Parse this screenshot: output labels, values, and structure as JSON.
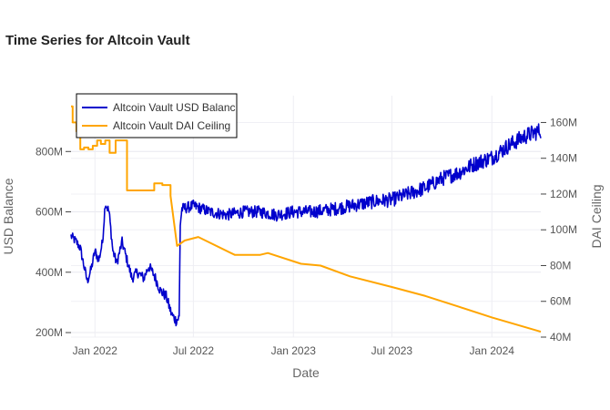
{
  "chart_data": {
    "type": "line",
    "title": "Time Series for Altcoin Vault",
    "xlabel": "Date",
    "ylabel_left": "USD Balance",
    "ylabel_right": "DAI Ceiling",
    "x_range": [
      "2021-11-18",
      "2024-03-31"
    ],
    "x_ticks": [
      {
        "date": "2022-01-01",
        "label": "Jan 2022"
      },
      {
        "date": "2022-07-01",
        "label": "Jul 2022"
      },
      {
        "date": "2023-01-01",
        "label": "Jan 2023"
      },
      {
        "date": "2023-07-01",
        "label": "Jul 2023"
      },
      {
        "date": "2024-01-01",
        "label": "Jan 2024"
      }
    ],
    "y_left": {
      "range": [
        185,
        985
      ],
      "ticks": [
        200,
        400,
        600,
        800
      ],
      "tick_labels": [
        "200M",
        "400M",
        "600M",
        "800M"
      ],
      "unit": "M"
    },
    "y_right": {
      "range": [
        40,
        175
      ],
      "ticks": [
        40,
        60,
        80,
        100,
        120,
        140,
        160
      ],
      "tick_labels": [
        "40M",
        "60M",
        "80M",
        "100M",
        "120M",
        "140M",
        "160M"
      ],
      "unit": "M"
    },
    "grid": true,
    "legend_placement": "top-left",
    "series": [
      {
        "name": "Altcoin Vault USD Balance",
        "legend_label": "Altcoin Vault USD Balanc",
        "axis": "left",
        "color": "#0000cc",
        "jitter_amplitude": 28,
        "points": [
          [
            "2021-11-18",
            520
          ],
          [
            "2021-11-28",
            500
          ],
          [
            "2021-12-05",
            480
          ],
          [
            "2021-12-12",
            420
          ],
          [
            "2021-12-18",
            370
          ],
          [
            "2021-12-25",
            410
          ],
          [
            "2022-01-01",
            470
          ],
          [
            "2022-01-08",
            440
          ],
          [
            "2022-01-15",
            500
          ],
          [
            "2022-01-20",
            630
          ],
          [
            "2022-01-27",
            600
          ],
          [
            "2022-02-03",
            470
          ],
          [
            "2022-02-10",
            430
          ],
          [
            "2022-02-20",
            500
          ],
          [
            "2022-03-01",
            440
          ],
          [
            "2022-03-10",
            380
          ],
          [
            "2022-03-20",
            400
          ],
          [
            "2022-04-01",
            380
          ],
          [
            "2022-04-10",
            420
          ],
          [
            "2022-04-20",
            390
          ],
          [
            "2022-05-01",
            340
          ],
          [
            "2022-05-12",
            320
          ],
          [
            "2022-05-22",
            260
          ],
          [
            "2022-05-30",
            240
          ],
          [
            "2022-06-05",
            250
          ],
          [
            "2022-06-07",
            560
          ],
          [
            "2022-06-10",
            610
          ],
          [
            "2022-07-01",
            620
          ],
          [
            "2022-08-01",
            600
          ],
          [
            "2022-09-01",
            590
          ],
          [
            "2022-10-01",
            600
          ],
          [
            "2022-11-01",
            600
          ],
          [
            "2022-12-01",
            590
          ],
          [
            "2023-01-01",
            600
          ],
          [
            "2023-02-01",
            600
          ],
          [
            "2023-03-01",
            605
          ],
          [
            "2023-04-01",
            615
          ],
          [
            "2023-05-01",
            625
          ],
          [
            "2023-06-01",
            635
          ],
          [
            "2023-07-01",
            640
          ],
          [
            "2023-08-01",
            660
          ],
          [
            "2023-09-01",
            680
          ],
          [
            "2023-10-01",
            710
          ],
          [
            "2023-11-01",
            730
          ],
          [
            "2023-12-01",
            760
          ],
          [
            "2024-01-01",
            780
          ],
          [
            "2024-02-01",
            820
          ],
          [
            "2024-03-01",
            850
          ],
          [
            "2024-03-31",
            870
          ]
        ]
      },
      {
        "name": "Altcoin Vault DAI Ceiling",
        "legend_label": "Altcoin Vault DAI Ceiling",
        "axis": "right",
        "color": "#ffa500",
        "step": true,
        "points": [
          [
            "2021-11-18",
            169
          ],
          [
            "2021-11-21",
            160
          ],
          [
            "2021-11-28",
            155
          ],
          [
            "2021-12-05",
            145
          ],
          [
            "2021-12-12",
            146
          ],
          [
            "2021-12-20",
            145
          ],
          [
            "2021-12-28",
            147
          ],
          [
            "2022-01-05",
            150
          ],
          [
            "2022-01-12",
            148
          ],
          [
            "2022-01-20",
            150
          ],
          [
            "2022-01-28",
            143
          ],
          [
            "2022-02-08",
            150
          ],
          [
            "2022-02-20",
            150
          ],
          [
            "2022-03-01",
            122
          ],
          [
            "2022-04-12",
            122
          ],
          [
            "2022-04-20",
            126
          ],
          [
            "2022-05-05",
            125
          ],
          [
            "2022-05-20",
            119
          ],
          [
            "2022-06-01",
            91
          ],
          [
            "2022-06-15",
            94
          ],
          [
            "2022-07-10",
            96
          ],
          [
            "2022-09-15",
            86
          ],
          [
            "2022-11-01",
            86
          ],
          [
            "2022-11-15",
            87
          ],
          [
            "2023-01-15",
            81
          ],
          [
            "2023-02-20",
            80
          ],
          [
            "2023-04-15",
            74
          ],
          [
            "2023-07-01",
            68
          ],
          [
            "2023-09-01",
            63
          ],
          [
            "2023-11-01",
            57
          ],
          [
            "2024-01-01",
            51
          ],
          [
            "2024-03-31",
            43
          ]
        ]
      }
    ]
  }
}
